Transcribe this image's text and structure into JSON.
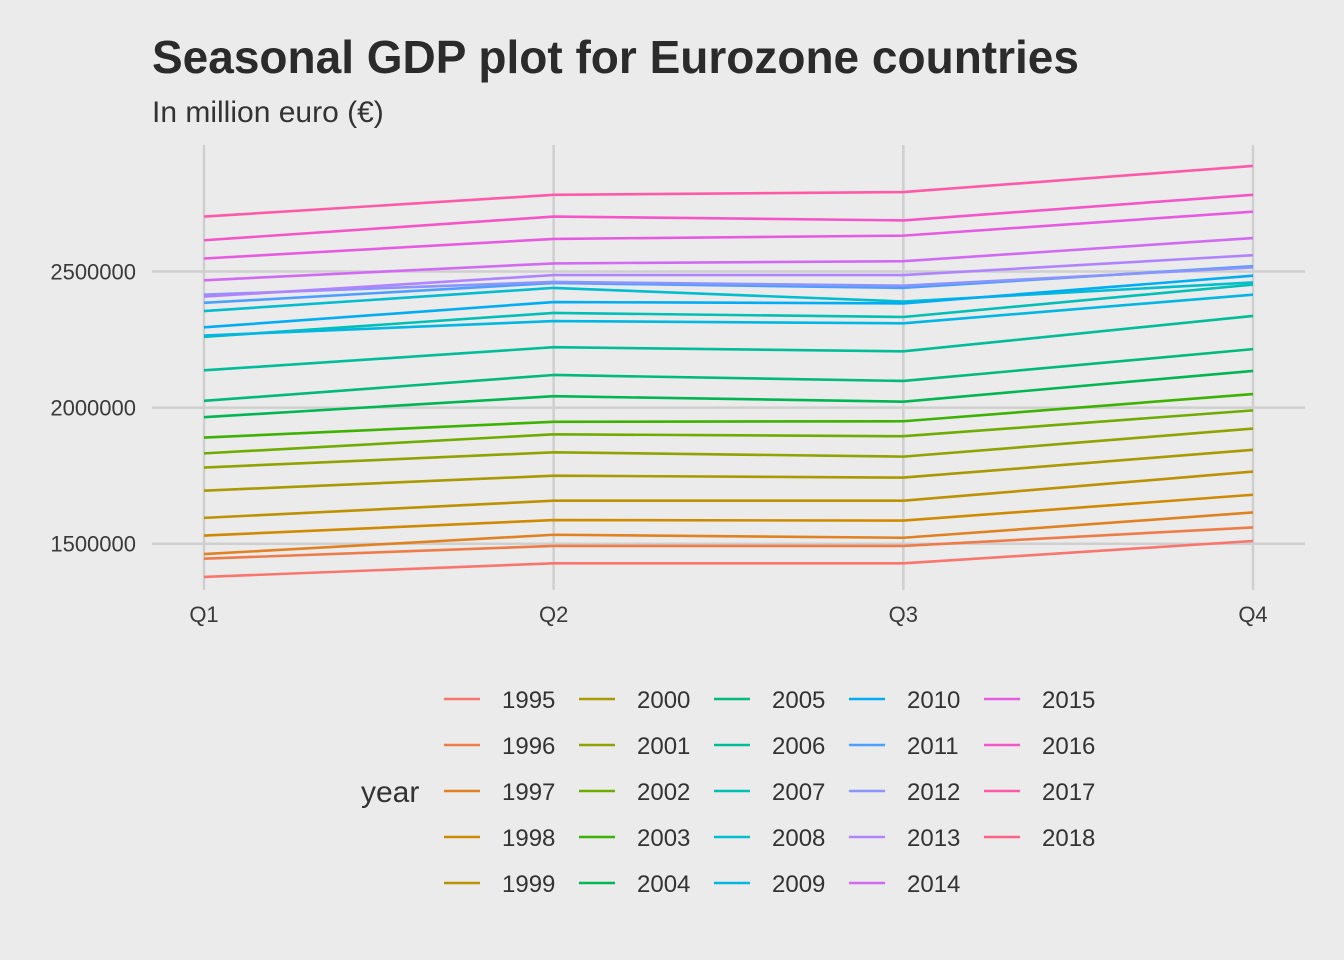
{
  "chart_data": {
    "type": "line",
    "title": "Seasonal GDP plot for Eurozone countries",
    "subtitle": "In million euro (€)",
    "xlabel": "",
    "ylabel": "",
    "categories": [
      "Q1",
      "Q2",
      "Q3",
      "Q4"
    ],
    "y_ticks": [
      1500000,
      2000000,
      2500000
    ],
    "y_tick_labels": [
      "1500000",
      "2000000",
      "2500000"
    ],
    "ylim": [
      1330000,
      2965000
    ],
    "grid": true,
    "legend": {
      "title": "year",
      "position": "bottom"
    },
    "series": [
      {
        "name": "1995",
        "color": "#F8766D",
        "values": [
          1378000,
          1428000,
          1428000,
          1510000
        ]
      },
      {
        "name": "1996",
        "color": "#EE7C49",
        "values": [
          1445000,
          1492000,
          1492000,
          1560000
        ]
      },
      {
        "name": "1997",
        "color": "#E08221",
        "values": [
          1462000,
          1533000,
          1522000,
          1615000
        ]
      },
      {
        "name": "1998",
        "color": "#CF8B00",
        "values": [
          1530000,
          1587000,
          1585000,
          1680000
        ]
      },
      {
        "name": "1999",
        "color": "#BC9200",
        "values": [
          1595000,
          1658000,
          1658000,
          1765000
        ]
      },
      {
        "name": "2000",
        "color": "#A89A00",
        "values": [
          1695000,
          1750000,
          1743000,
          1845000
        ]
      },
      {
        "name": "2001",
        "color": "#90A300",
        "values": [
          1780000,
          1836000,
          1820000,
          1923000
        ]
      },
      {
        "name": "2002",
        "color": "#70AB00",
        "values": [
          1832000,
          1902000,
          1895000,
          1990000
        ]
      },
      {
        "name": "2003",
        "color": "#3DB200",
        "values": [
          1890000,
          1948000,
          1950000,
          2050000
        ]
      },
      {
        "name": "2004",
        "color": "#00B652",
        "values": [
          1965000,
          2042000,
          2022000,
          2135000
        ]
      },
      {
        "name": "2005",
        "color": "#00BA7A",
        "values": [
          2025000,
          2120000,
          2098000,
          2215000
        ]
      },
      {
        "name": "2006",
        "color": "#00BD9A",
        "values": [
          2137000,
          2222000,
          2207000,
          2337000
        ]
      },
      {
        "name": "2007",
        "color": "#00BFB5",
        "values": [
          2260000,
          2348000,
          2333000,
          2452000
        ]
      },
      {
        "name": "2008",
        "color": "#00BDCF",
        "values": [
          2355000,
          2440000,
          2390000,
          2460000
        ]
      },
      {
        "name": "2009",
        "color": "#00B7E4",
        "values": [
          2265000,
          2318000,
          2310000,
          2415000
        ]
      },
      {
        "name": "2010",
        "color": "#00ADF4",
        "values": [
          2295000,
          2388000,
          2383000,
          2485000
        ]
      },
      {
        "name": "2011",
        "color": "#4BA0FF",
        "values": [
          2385000,
          2458000,
          2440000,
          2520000
        ]
      },
      {
        "name": "2012",
        "color": "#8C94FF",
        "values": [
          2415000,
          2462000,
          2448000,
          2515000
        ]
      },
      {
        "name": "2013",
        "color": "#B184FF",
        "values": [
          2408000,
          2487000,
          2487000,
          2560000
        ]
      },
      {
        "name": "2014",
        "color": "#D06BF2",
        "values": [
          2468000,
          2530000,
          2538000,
          2623000
        ]
      },
      {
        "name": "2015",
        "color": "#E65CE1",
        "values": [
          2548000,
          2620000,
          2632000,
          2720000
        ]
      },
      {
        "name": "2016",
        "color": "#F456C8",
        "values": [
          2615000,
          2702000,
          2688000,
          2782000
        ]
      },
      {
        "name": "2017",
        "color": "#FF5AA8",
        "values": [
          2702000,
          2782000,
          2792000,
          2888000
        ]
      },
      {
        "name": "2018",
        "color": "#FF6385",
        "values": [
          null,
          null,
          null,
          null
        ]
      }
    ]
  }
}
